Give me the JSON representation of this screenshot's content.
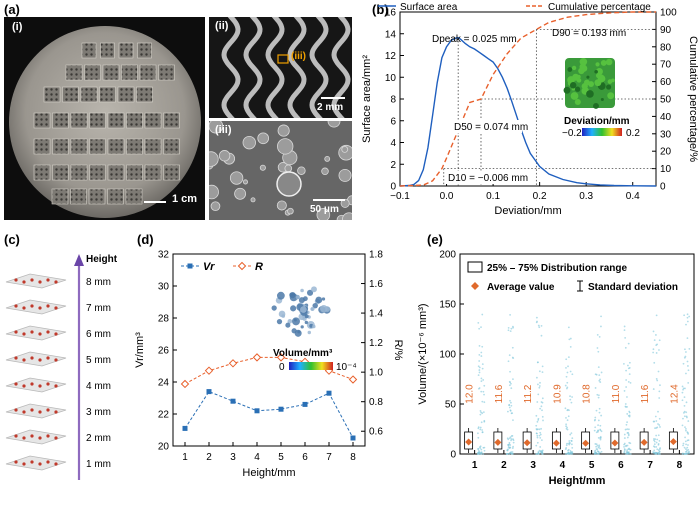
{
  "panels": {
    "a": {
      "label": "(a)",
      "sub_i": "(i)",
      "sub_ii": "(ii)",
      "sub_iii": "(iii)",
      "sub_iii_inset": "(iii)",
      "scale_i": "1 cm",
      "scale_ii": "2 mm",
      "scale_iii": "50 μm"
    },
    "b": {
      "label": "(b)"
    },
    "c": {
      "label": "(c)",
      "axis_title": "Height",
      "heights": [
        "8 mm",
        "7 mm",
        "6 mm",
        "5 mm",
        "4 mm",
        "3 mm",
        "2 mm",
        "1 mm"
      ]
    },
    "d": {
      "label": "(d)"
    },
    "e": {
      "label": "(e)"
    }
  },
  "chart_data": [
    {
      "id": "b",
      "type": "line",
      "xlabel": "Deviation/mm",
      "ylabel": "Surface area/mm²",
      "y2label": "Cumulative percentage/%",
      "xlim": [
        -0.1,
        0.45
      ],
      "ylim": [
        0,
        16
      ],
      "y2lim": [
        0,
        100
      ],
      "xticks": [
        -0.1,
        0.0,
        0.1,
        0.2,
        0.3,
        0.4
      ],
      "xtick_labels": [
        "−0.1",
        "0.0",
        "0.1",
        "0.2",
        "0.3",
        "0.4"
      ],
      "yticks": [
        0,
        2,
        4,
        6,
        8,
        10,
        12,
        14,
        16
      ],
      "y2ticks": [
        0,
        10,
        20,
        30,
        40,
        50,
        60,
        70,
        80,
        90,
        100
      ],
      "legend": [
        "Surface area",
        "Cumulative percentage"
      ],
      "series": [
        {
          "name": "Surface area",
          "color": "#1f5fbf",
          "x": [
            -0.1,
            -0.08,
            -0.07,
            -0.06,
            -0.05,
            -0.04,
            -0.03,
            -0.02,
            -0.01,
            0.0,
            0.01,
            0.02,
            0.025,
            0.03,
            0.04,
            0.05,
            0.06,
            0.07,
            0.08,
            0.09,
            0.1,
            0.11,
            0.12,
            0.13,
            0.14,
            0.15,
            0.16,
            0.17,
            0.18,
            0.2,
            0.22,
            0.25,
            0.28,
            0.3,
            0.33,
            0.36,
            0.4,
            0.45
          ],
          "y": [
            0,
            0.05,
            0.15,
            0.5,
            1.5,
            3.5,
            6.5,
            9.5,
            11.8,
            12.8,
            13.4,
            13.6,
            13.65,
            13.5,
            13.1,
            12.8,
            12.6,
            12.3,
            12.0,
            11.7,
            11.4,
            10.8,
            10.0,
            9.0,
            7.8,
            6.5,
            5.2,
            4.0,
            3.0,
            1.8,
            1.1,
            0.6,
            0.3,
            0.2,
            0.1,
            0.05,
            0.02,
            0
          ]
        },
        {
          "name": "Cumulative percentage",
          "color": "#e8602c",
          "axis": "right",
          "x": [
            -0.1,
            -0.05,
            -0.03,
            -0.01,
            0.0,
            0.025,
            0.05,
            0.074,
            0.1,
            0.13,
            0.16,
            0.193,
            0.22,
            0.26,
            0.3,
            0.35,
            0.4,
            0.45
          ],
          "y": [
            0,
            0.5,
            3,
            10,
            16,
            32,
            48,
            50,
            64,
            76,
            85,
            90,
            94,
            97,
            98.5,
            99.5,
            100,
            100
          ]
        }
      ],
      "annotations": {
        "dpeak": "Dpeak = 0.025 mm",
        "d50": "D50 = 0.074 mm",
        "d10": "D10 = −0.006 mm",
        "d90": "D90 = 0.193 mm"
      },
      "colorbar": {
        "title": "Deviation/mm",
        "min_label": "−0.2",
        "max_label": "0.2"
      }
    },
    {
      "id": "d",
      "type": "line",
      "xlabel": "Height/mm",
      "ylabel": "Vr/mm³",
      "y2label": "R/%",
      "xlim": [
        0.5,
        8.5
      ],
      "ylim": [
        20,
        32
      ],
      "y2lim": [
        0.5,
        1.8
      ],
      "xticks": [
        1,
        2,
        3,
        4,
        5,
        6,
        7,
        8
      ],
      "yticks": [
        20,
        22,
        24,
        26,
        28,
        30,
        32
      ],
      "y2ticks": [
        0.6,
        0.8,
        1.0,
        1.2,
        1.4,
        1.6,
        1.8
      ],
      "y2tick_labels": [
        "0.6",
        "0.8",
        "1.0",
        "1.2",
        "1.4",
        "1.6",
        "1.8"
      ],
      "legend": [
        "Vr",
        "R"
      ],
      "series": [
        {
          "name": "Vr",
          "color": "#2a6fb5",
          "x": [
            1,
            2,
            3,
            4,
            5,
            6,
            7,
            8
          ],
          "y": [
            21.1,
            23.4,
            22.8,
            22.2,
            22.3,
            22.6,
            23.3,
            20.5
          ]
        },
        {
          "name": "R",
          "color": "#e8602c",
          "axis": "right",
          "x": [
            1,
            2,
            3,
            4,
            5,
            6,
            7,
            8
          ],
          "y": [
            0.92,
            1.01,
            1.06,
            1.1,
            1.1,
            1.07,
            1.01,
            0.95
          ]
        }
      ],
      "colorbar": {
        "title": "Volume/mm³",
        "min_label": "0",
        "max_label": "10⁻⁴"
      }
    },
    {
      "id": "e",
      "type": "box",
      "xlabel": "Height/mm",
      "ylabel": "Volume/(×10⁻⁶ mm³)",
      "xlim": [
        0.5,
        8.5
      ],
      "ylim": [
        0,
        200
      ],
      "xticks": [
        1,
        2,
        3,
        4,
        5,
        6,
        7,
        8
      ],
      "yticks": [
        0,
        50,
        100,
        150,
        200
      ],
      "categories": [
        "1",
        "2",
        "3",
        "4",
        "5",
        "6",
        "7",
        "8"
      ],
      "averages": [
        12.0,
        11.6,
        11.2,
        10.9,
        10.8,
        11.0,
        11.6,
        12.4
      ],
      "average_labels": [
        "12.0",
        "11.6",
        "11.2",
        "10.9",
        "10.8",
        "11.0",
        "11.6",
        "12.4"
      ],
      "legend": {
        "range": "25% – 75% Distribution range",
        "average": "Average value",
        "std": "Standard deviation"
      }
    }
  ]
}
